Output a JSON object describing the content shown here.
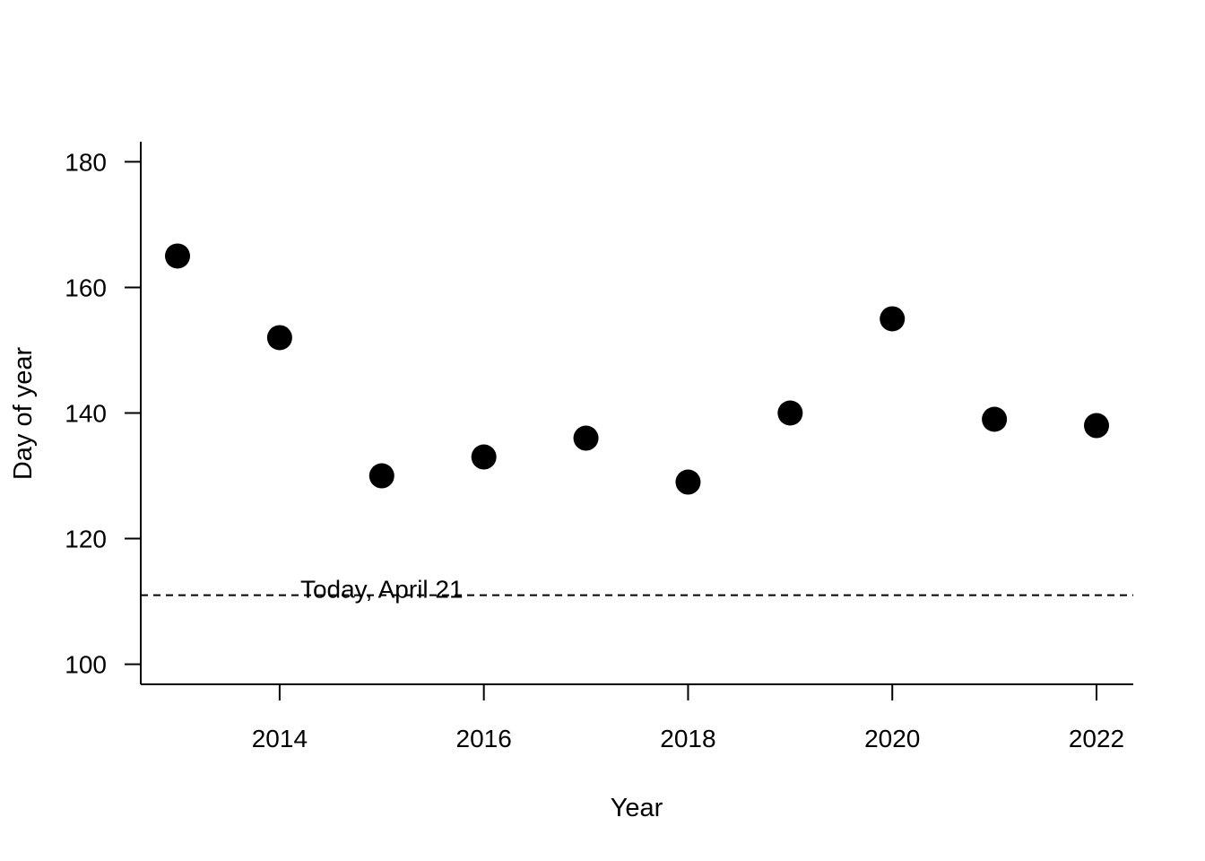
{
  "chart_data": {
    "type": "scatter",
    "title": "",
    "xlabel": "Year",
    "ylabel": "Day of year",
    "xlim": [
      2012.64,
      2022.36
    ],
    "ylim": [
      96.8,
      183.2
    ],
    "x_ticks": [
      2014,
      2016,
      2018,
      2020,
      2022
    ],
    "y_ticks": [
      100,
      120,
      140,
      160,
      180
    ],
    "grid": false,
    "legend": "none",
    "series": [
      {
        "x": [
          2013,
          2014,
          2015,
          2016,
          2017,
          2018,
          2019,
          2020,
          2021,
          2022
        ],
        "y": [
          165,
          152,
          130,
          133,
          136,
          129,
          140,
          155,
          139,
          138
        ]
      }
    ],
    "reference_line": {
      "y": 111,
      "style": "dashed",
      "label": "Today, April 21",
      "label_x": 2015
    },
    "colors": {
      "points": "#000000",
      "axes": "#000000"
    }
  }
}
